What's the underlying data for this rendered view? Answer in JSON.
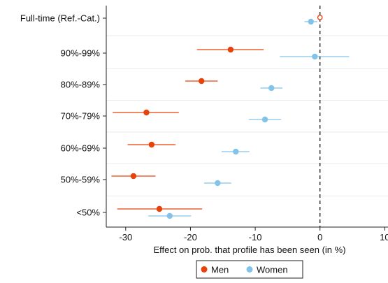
{
  "chart_data": {
    "type": "scatter",
    "subtype": "coefficient-plot",
    "categories": [
      "Full-time (Ref.-Cat.)",
      "90%-99%",
      "80%-89%",
      "70%-79%",
      "60%-69%",
      "50%-59%",
      "<50%"
    ],
    "xlabel": "Effect on prob. that profile has been seen (in %)",
    "ylabel": "",
    "xlim": [
      -33,
      10.5
    ],
    "xticks": [
      -30,
      -20,
      -10,
      0,
      10
    ],
    "xtick_labels": [
      "-30",
      "-20",
      "-10",
      "0",
      "10"
    ],
    "reference_line": 0,
    "grid": "horizontal",
    "legend_position": "bottom",
    "series": [
      {
        "name": "Men",
        "color": "#e8420a",
        "points": [
          {
            "category": "Full-time (Ref.-Cat.)",
            "estimate": 0,
            "ci": null,
            "reference": true
          },
          {
            "category": "90%-99%",
            "estimate": -13.8,
            "ci": [
              -19.0,
              -8.7
            ]
          },
          {
            "category": "80%-89%",
            "estimate": -18.3,
            "ci": [
              -20.8,
              -15.8
            ]
          },
          {
            "category": "70%-79%",
            "estimate": -26.8,
            "ci": [
              -32.0,
              -21.8
            ]
          },
          {
            "category": "60%-69%",
            "estimate": -26.0,
            "ci": [
              -29.7,
              -22.3
            ]
          },
          {
            "category": "50%-59%",
            "estimate": -28.8,
            "ci": [
              -32.2,
              -25.4
            ]
          },
          {
            "category": "<50%",
            "estimate": -24.8,
            "ci": [
              -31.3,
              -18.2
            ]
          }
        ]
      },
      {
        "name": "Women",
        "color": "#82c3ea",
        "points": [
          {
            "category": "Full-time (Ref.-Cat.)",
            "estimate": -1.4,
            "ci": [
              -2.4,
              -0.4
            ]
          },
          {
            "category": "90%-99%",
            "estimate": -0.8,
            "ci": [
              -6.2,
              4.5
            ]
          },
          {
            "category": "80%-89%",
            "estimate": -7.5,
            "ci": [
              -9.2,
              -5.8
            ]
          },
          {
            "category": "70%-79%",
            "estimate": -8.5,
            "ci": [
              -11.0,
              -6.0
            ]
          },
          {
            "category": "60%-69%",
            "estimate": -13.0,
            "ci": [
              -15.2,
              -10.9
            ]
          },
          {
            "category": "50%-59%",
            "estimate": -15.8,
            "ci": [
              -17.9,
              -13.7
            ]
          },
          {
            "category": "<50%",
            "estimate": -23.2,
            "ci": [
              -26.5,
              -19.9
            ]
          }
        ]
      }
    ]
  }
}
